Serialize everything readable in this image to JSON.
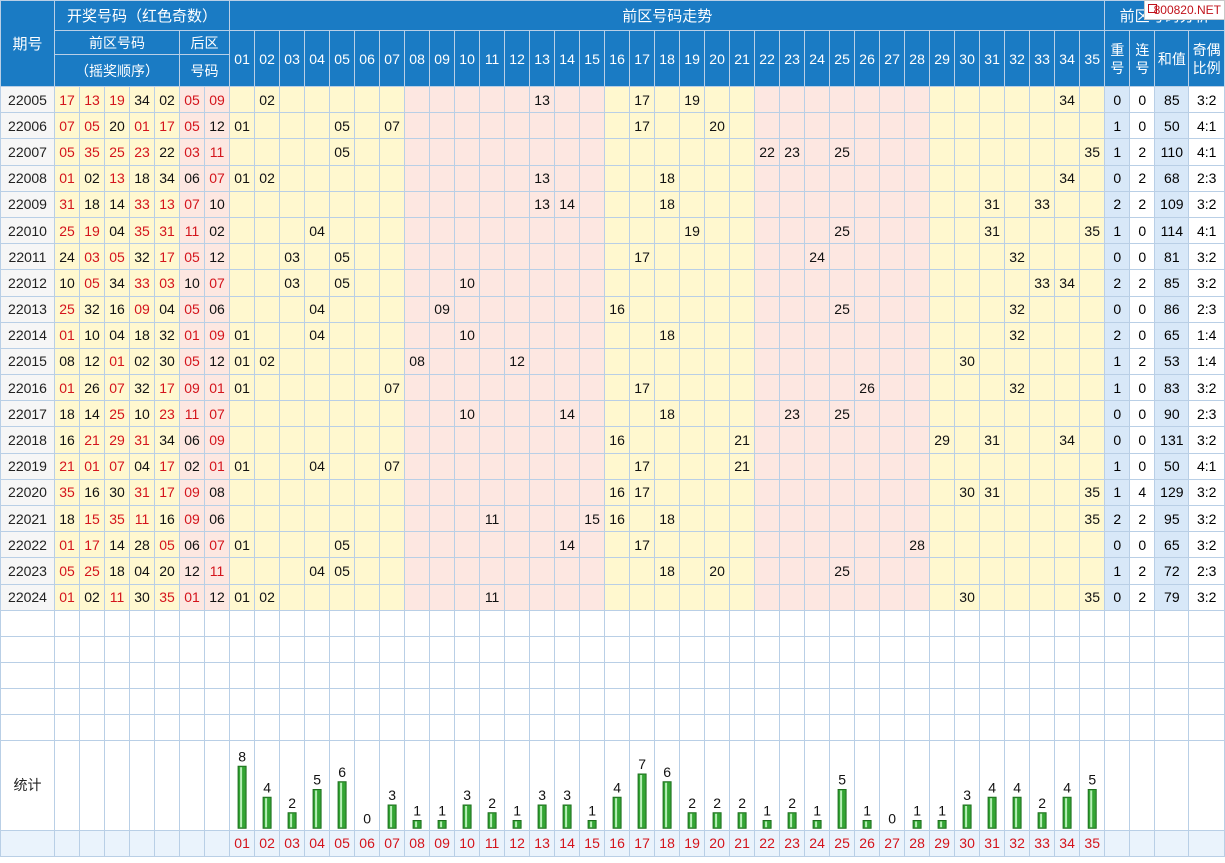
{
  "header": {
    "period": "期号",
    "draw_title": "开奖号码（红色奇数）",
    "front_title": "前区号码",
    "front_sub": "（摇奖顺序）",
    "back_title": "后区",
    "back_sub": "号码",
    "trend_title": "前区号码走势",
    "analysis_title": "前区号码分析",
    "repeat_a": "重",
    "repeat_b": "号",
    "consec_a": "连",
    "consec_b": "号",
    "sum": "和值",
    "ratio_a": "奇偶",
    "ratio_b": "比例"
  },
  "logo": "800820.NET",
  "stats_label": "统计",
  "numbers": [
    "01",
    "02",
    "03",
    "04",
    "05",
    "06",
    "07",
    "08",
    "09",
    "10",
    "11",
    "12",
    "13",
    "14",
    "15",
    "16",
    "17",
    "18",
    "19",
    "20",
    "21",
    "22",
    "23",
    "24",
    "25",
    "26",
    "27",
    "28",
    "29",
    "30",
    "31",
    "32",
    "33",
    "34",
    "35"
  ],
  "colors": {
    "header_bg": "#1a7bc4",
    "odd": "#d4141c",
    "bar": "#2e9e2e"
  },
  "rows": [
    {
      "period": "22005",
      "front": [
        "17",
        "13",
        "19",
        "34",
        "02"
      ],
      "back": [
        "05",
        "09"
      ],
      "repeat": "0",
      "consec": "0",
      "sum": "85",
      "ratio": "3:2"
    },
    {
      "period": "22006",
      "front": [
        "07",
        "05",
        "20",
        "01",
        "17"
      ],
      "back": [
        "05",
        "12"
      ],
      "repeat": "1",
      "consec": "0",
      "sum": "50",
      "ratio": "4:1"
    },
    {
      "period": "22007",
      "front": [
        "05",
        "35",
        "25",
        "23",
        "22"
      ],
      "back": [
        "03",
        "11"
      ],
      "repeat": "1",
      "consec": "2",
      "sum": "110",
      "ratio": "4:1"
    },
    {
      "period": "22008",
      "front": [
        "01",
        "02",
        "13",
        "18",
        "34"
      ],
      "back": [
        "06",
        "07"
      ],
      "repeat": "0",
      "consec": "2",
      "sum": "68",
      "ratio": "2:3"
    },
    {
      "period": "22009",
      "front": [
        "31",
        "18",
        "14",
        "33",
        "13"
      ],
      "back": [
        "07",
        "10"
      ],
      "repeat": "2",
      "consec": "2",
      "sum": "109",
      "ratio": "3:2"
    },
    {
      "period": "22010",
      "front": [
        "25",
        "19",
        "04",
        "35",
        "31"
      ],
      "back": [
        "11",
        "02"
      ],
      "repeat": "1",
      "consec": "0",
      "sum": "114",
      "ratio": "4:1"
    },
    {
      "period": "22011",
      "front": [
        "24",
        "03",
        "05",
        "32",
        "17"
      ],
      "back": [
        "05",
        "12"
      ],
      "repeat": "0",
      "consec": "0",
      "sum": "81",
      "ratio": "3:2"
    },
    {
      "period": "22012",
      "front": [
        "10",
        "05",
        "34",
        "33",
        "03"
      ],
      "back": [
        "10",
        "07"
      ],
      "repeat": "2",
      "consec": "2",
      "sum": "85",
      "ratio": "3:2"
    },
    {
      "period": "22013",
      "front": [
        "25",
        "32",
        "16",
        "09",
        "04"
      ],
      "back": [
        "05",
        "06"
      ],
      "repeat": "0",
      "consec": "0",
      "sum": "86",
      "ratio": "2:3"
    },
    {
      "period": "22014",
      "front": [
        "01",
        "10",
        "04",
        "18",
        "32"
      ],
      "back": [
        "01",
        "09"
      ],
      "repeat": "2",
      "consec": "0",
      "sum": "65",
      "ratio": "1:4"
    },
    {
      "period": "22015",
      "front": [
        "08",
        "12",
        "01",
        "02",
        "30"
      ],
      "back": [
        "05",
        "12"
      ],
      "repeat": "1",
      "consec": "2",
      "sum": "53",
      "ratio": "1:4"
    },
    {
      "period": "22016",
      "front": [
        "01",
        "26",
        "07",
        "32",
        "17"
      ],
      "back": [
        "09",
        "01"
      ],
      "repeat": "1",
      "consec": "0",
      "sum": "83",
      "ratio": "3:2"
    },
    {
      "period": "22017",
      "front": [
        "18",
        "14",
        "25",
        "10",
        "23"
      ],
      "back": [
        "11",
        "07"
      ],
      "repeat": "0",
      "consec": "0",
      "sum": "90",
      "ratio": "2:3"
    },
    {
      "period": "22018",
      "front": [
        "16",
        "21",
        "29",
        "31",
        "34"
      ],
      "back": [
        "06",
        "09"
      ],
      "repeat": "0",
      "consec": "0",
      "sum": "131",
      "ratio": "3:2"
    },
    {
      "period": "22019",
      "front": [
        "21",
        "01",
        "07",
        "04",
        "17"
      ],
      "back": [
        "02",
        "01"
      ],
      "repeat": "1",
      "consec": "0",
      "sum": "50",
      "ratio": "4:1"
    },
    {
      "period": "22020",
      "front": [
        "35",
        "16",
        "30",
        "31",
        "17"
      ],
      "back": [
        "09",
        "08"
      ],
      "repeat": "1",
      "consec": "4",
      "sum": "129",
      "ratio": "3:2"
    },
    {
      "period": "22021",
      "front": [
        "18",
        "15",
        "35",
        "11",
        "16"
      ],
      "back": [
        "09",
        "06"
      ],
      "repeat": "2",
      "consec": "2",
      "sum": "95",
      "ratio": "3:2"
    },
    {
      "period": "22022",
      "front": [
        "01",
        "17",
        "14",
        "28",
        "05"
      ],
      "back": [
        "06",
        "07"
      ],
      "repeat": "0",
      "consec": "0",
      "sum": "65",
      "ratio": "3:2"
    },
    {
      "period": "22023",
      "front": [
        "05",
        "25",
        "18",
        "04",
        "20"
      ],
      "back": [
        "12",
        "11"
      ],
      "repeat": "1",
      "consec": "2",
      "sum": "72",
      "ratio": "2:3"
    },
    {
      "period": "22024",
      "front": [
        "01",
        "02",
        "11",
        "30",
        "35"
      ],
      "back": [
        "01",
        "12"
      ],
      "repeat": "0",
      "consec": "2",
      "sum": "79",
      "ratio": "3:2"
    }
  ],
  "chart_data": {
    "type": "bar",
    "categories": [
      "01",
      "02",
      "03",
      "04",
      "05",
      "06",
      "07",
      "08",
      "09",
      "10",
      "11",
      "12",
      "13",
      "14",
      "15",
      "16",
      "17",
      "18",
      "19",
      "20",
      "21",
      "22",
      "23",
      "24",
      "25",
      "26",
      "27",
      "28",
      "29",
      "30",
      "31",
      "32",
      "33",
      "34",
      "35"
    ],
    "values": [
      8,
      4,
      2,
      5,
      6,
      0,
      3,
      1,
      1,
      3,
      2,
      1,
      3,
      3,
      1,
      4,
      7,
      6,
      2,
      2,
      2,
      1,
      2,
      1,
      5,
      1,
      0,
      1,
      1,
      3,
      4,
      4,
      2,
      4,
      5
    ],
    "title": "统计",
    "ylim": [
      0,
      8
    ]
  }
}
